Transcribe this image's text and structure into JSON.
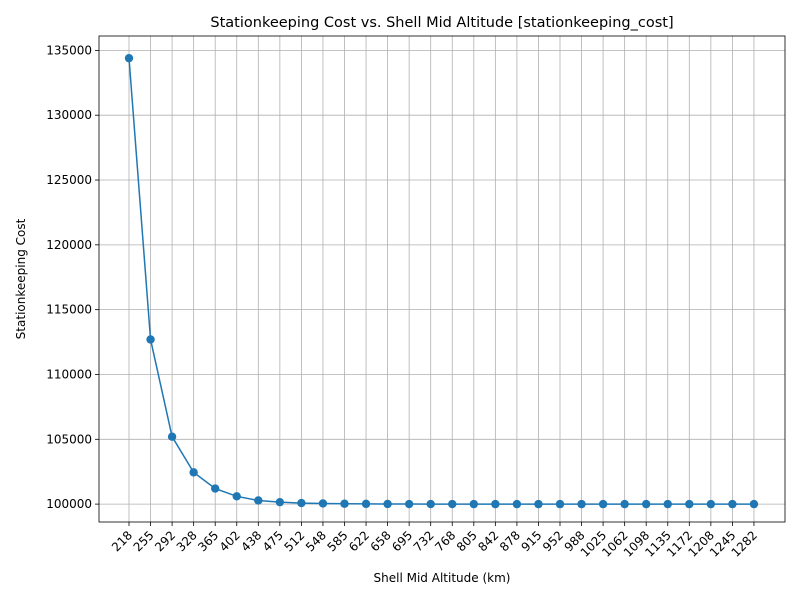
{
  "chart_data": {
    "type": "line",
    "title": "Stationkeeping Cost vs. Shell Mid Altitude [stationkeeping_cost]",
    "xlabel": "Shell Mid Altitude (km)",
    "ylabel": "Stationkeeping Cost",
    "categories": [
      "218",
      "255",
      "292",
      "328",
      "365",
      "402",
      "438",
      "475",
      "512",
      "548",
      "585",
      "622",
      "658",
      "695",
      "732",
      "768",
      "805",
      "842",
      "878",
      "915",
      "952",
      "988",
      "1025",
      "1062",
      "1098",
      "1135",
      "1172",
      "1208",
      "1245",
      "1282"
    ],
    "values": [
      134400,
      112700,
      105200,
      102450,
      101200,
      100600,
      100280,
      100150,
      100080,
      100050,
      100030,
      100020,
      100010,
      100005,
      100003,
      100002,
      100001,
      100001,
      100000,
      100000,
      100000,
      100000,
      100000,
      100000,
      100000,
      100000,
      100000,
      100000,
      100000,
      100000
    ],
    "yticks": [
      100000,
      105000,
      110000,
      115000,
      120000,
      125000,
      130000,
      135000
    ],
    "ylim": [
      98620,
      136110
    ],
    "grid": true,
    "color": "#1f77b4"
  }
}
